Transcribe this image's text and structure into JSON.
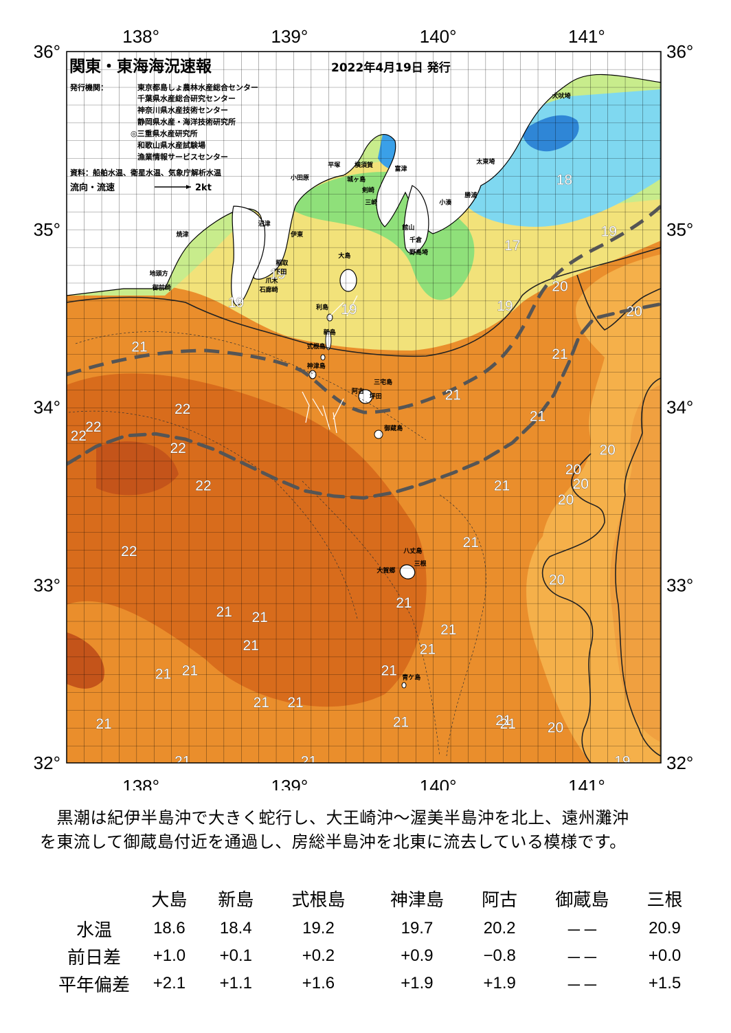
{
  "header": {
    "title": "関東・東海海況速報",
    "date": "2022年4月19日 発行",
    "issuer_label": "発行機関：",
    "issuers": [
      "東京都島しょ農林水産総合センター",
      "千葉県水産総合研究センター",
      "神奈川県水産技術センター",
      "静岡県水産・海洋技術研究所",
      "◎三重県水産研究所",
      "和歌山県水産試験場",
      "漁業情報サービスセンター"
    ],
    "source": "資料：船舶水温、衛星水温、気象庁解析水温",
    "flow_label": "流向・流速",
    "flow_scale": "2kt"
  },
  "axes": {
    "lon_ticks": [
      {
        "value": 138,
        "label": "138°"
      },
      {
        "value": 139,
        "label": "139°"
      },
      {
        "value": 140,
        "label": "140°"
      },
      {
        "value": 141,
        "label": "141°"
      }
    ],
    "lat_ticks": [
      {
        "value": 36,
        "label": "36°"
      },
      {
        "value": 35,
        "label": "35°"
      },
      {
        "value": 34,
        "label": "34°"
      },
      {
        "value": 33,
        "label": "33°"
      },
      {
        "value": 32,
        "label": "32°"
      }
    ]
  },
  "place_names": [
    {
      "name": "犬吠埼",
      "lon": 140.83,
      "lat": 35.74
    },
    {
      "name": "太東埼",
      "lon": 140.32,
      "lat": 35.37
    },
    {
      "name": "勝浦",
      "lon": 140.22,
      "lat": 35.18
    },
    {
      "name": "小湊",
      "lon": 140.05,
      "lat": 35.14
    },
    {
      "name": "富津",
      "lon": 139.75,
      "lat": 35.33
    },
    {
      "name": "館山",
      "lon": 139.8,
      "lat": 35.0
    },
    {
      "name": "千倉",
      "lon": 139.85,
      "lat": 34.93
    },
    {
      "name": "野島埼",
      "lon": 139.87,
      "lat": 34.86
    },
    {
      "name": "平塚",
      "lon": 139.3,
      "lat": 35.35
    },
    {
      "name": "横須賀",
      "lon": 139.5,
      "lat": 35.35
    },
    {
      "name": "三崎",
      "lon": 139.55,
      "lat": 35.14
    },
    {
      "name": "剣崎",
      "lon": 139.53,
      "lat": 35.21
    },
    {
      "name": "城ヶ島",
      "lon": 139.45,
      "lat": 35.27
    },
    {
      "name": "小田原",
      "lon": 139.07,
      "lat": 35.28
    },
    {
      "name": "伊東",
      "lon": 139.05,
      "lat": 34.96
    },
    {
      "name": "稲取",
      "lon": 138.95,
      "lat": 34.8
    },
    {
      "name": "下田",
      "lon": 138.94,
      "lat": 34.75
    },
    {
      "name": "爪木",
      "lon": 138.88,
      "lat": 34.7
    },
    {
      "name": "石廊崎",
      "lon": 138.86,
      "lat": 34.65
    },
    {
      "name": "沼津",
      "lon": 138.83,
      "lat": 35.02
    },
    {
      "name": "焼津",
      "lon": 138.28,
      "lat": 34.96
    },
    {
      "name": "御前崎",
      "lon": 138.14,
      "lat": 34.66
    },
    {
      "name": "地頭方",
      "lon": 138.12,
      "lat": 34.74
    },
    {
      "name": "大島",
      "lon": 139.37,
      "lat": 34.84
    },
    {
      "name": "利島",
      "lon": 139.22,
      "lat": 34.55
    },
    {
      "name": "新島",
      "lon": 139.27,
      "lat": 34.41
    },
    {
      "name": "式根島",
      "lon": 139.18,
      "lat": 34.33
    },
    {
      "name": "神津島",
      "lon": 139.18,
      "lat": 34.22
    },
    {
      "name": "阿古",
      "lon": 139.46,
      "lat": 34.08
    },
    {
      "name": "三宅島",
      "lon": 139.63,
      "lat": 34.13
    },
    {
      "name": "坪田",
      "lon": 139.58,
      "lat": 34.05
    },
    {
      "name": "御蔵島",
      "lon": 139.7,
      "lat": 33.87
    },
    {
      "name": "八丈島",
      "lon": 139.83,
      "lat": 33.18
    },
    {
      "name": "三根",
      "lon": 139.88,
      "lat": 33.11
    },
    {
      "name": "大賀郷",
      "lon": 139.65,
      "lat": 33.07
    },
    {
      "name": "青ケ島",
      "lon": 139.82,
      "lat": 32.47
    }
  ],
  "isotherm_labels": [
    {
      "value": "18",
      "lon": 140.85,
      "lat": 35.28
    },
    {
      "value": "19",
      "lon": 141.15,
      "lat": 34.99
    },
    {
      "value": "17",
      "lon": 140.5,
      "lat": 34.91
    },
    {
      "value": "19",
      "lon": 138.92,
      "lat": 34.75
    },
    {
      "value": "19",
      "lon": 138.64,
      "lat": 34.59
    },
    {
      "value": "19",
      "lon": 139.4,
      "lat": 34.55
    },
    {
      "value": "19",
      "lon": 140.45,
      "lat": 34.57
    },
    {
      "value": "20",
      "lon": 140.82,
      "lat": 34.68
    },
    {
      "value": "20",
      "lon": 141.32,
      "lat": 34.54
    },
    {
      "value": "21",
      "lon": 137.99,
      "lat": 34.34
    },
    {
      "value": "21",
      "lon": 140.82,
      "lat": 34.3
    },
    {
      "value": "21",
      "lon": 140.1,
      "lat": 34.07
    },
    {
      "value": "21",
      "lon": 140.67,
      "lat": 33.95
    },
    {
      "value": "22",
      "lon": 138.28,
      "lat": 33.99
    },
    {
      "value": "22",
      "lon": 137.68,
      "lat": 33.89
    },
    {
      "value": "22",
      "lon": 137.58,
      "lat": 33.84
    },
    {
      "value": "22",
      "lon": 138.25,
      "lat": 33.77
    },
    {
      "value": "22",
      "lon": 138.42,
      "lat": 33.56
    },
    {
      "value": "22",
      "lon": 137.92,
      "lat": 33.19
    },
    {
      "value": "20",
      "lon": 141.14,
      "lat": 33.76
    },
    {
      "value": "20",
      "lon": 140.91,
      "lat": 33.65
    },
    {
      "value": "20",
      "lon": 140.96,
      "lat": 33.57
    },
    {
      "value": "20",
      "lon": 140.86,
      "lat": 33.48
    },
    {
      "value": "21",
      "lon": 140.43,
      "lat": 33.56
    },
    {
      "value": "21",
      "lon": 140.22,
      "lat": 33.24
    },
    {
      "value": "20",
      "lon": 140.8,
      "lat": 33.03
    },
    {
      "value": "21",
      "lon": 139.77,
      "lat": 32.9
    },
    {
      "value": "21",
      "lon": 140.07,
      "lat": 32.75
    },
    {
      "value": "21",
      "lon": 139.93,
      "lat": 32.64
    },
    {
      "value": "21",
      "lon": 138.56,
      "lat": 32.85
    },
    {
      "value": "21",
      "lon": 138.8,
      "lat": 32.82
    },
    {
      "value": "21",
      "lon": 138.74,
      "lat": 32.66
    },
    {
      "value": "21",
      "lon": 138.15,
      "lat": 32.5
    },
    {
      "value": "21",
      "lon": 138.33,
      "lat": 32.52
    },
    {
      "value": "21",
      "lon": 139.67,
      "lat": 32.52
    },
    {
      "value": "21",
      "lon": 138.81,
      "lat": 32.34
    },
    {
      "value": "21",
      "lon": 139.04,
      "lat": 32.34
    },
    {
      "value": "21",
      "lon": 139.75,
      "lat": 32.23
    },
    {
      "value": "21",
      "lon": 140.44,
      "lat": 32.24
    },
    {
      "value": "21",
      "lon": 140.47,
      "lat": 32.22
    },
    {
      "value": "20",
      "lon": 140.79,
      "lat": 32.2
    },
    {
      "value": "21",
      "lon": 137.75,
      "lat": 32.22
    },
    {
      "value": "21",
      "lon": 138.28,
      "lat": 32.01
    },
    {
      "value": "21",
      "lon": 139.13,
      "lat": 32.01
    },
    {
      "value": "19",
      "lon": 141.24,
      "lat": 32.01
    }
  ],
  "kuroshio_path": {
    "description_unused": "",
    "points_lonlat": [
      [
        137.5,
        33.68
      ],
      [
        137.7,
        33.78
      ],
      [
        137.9,
        33.84
      ],
      [
        138.1,
        33.85
      ],
      [
        138.3,
        33.82
      ],
      [
        138.5,
        33.76
      ],
      [
        138.7,
        33.68
      ],
      [
        138.9,
        33.6
      ],
      [
        139.1,
        33.53
      ],
      [
        139.3,
        33.5
      ],
      [
        139.5,
        33.49
      ],
      [
        139.7,
        33.52
      ],
      [
        139.9,
        33.57
      ],
      [
        140.1,
        33.63
      ],
      [
        140.3,
        33.7
      ],
      [
        140.5,
        33.8
      ],
      [
        140.65,
        33.92
      ],
      [
        140.78,
        34.07
      ],
      [
        140.88,
        34.25
      ],
      [
        140.95,
        34.4
      ],
      [
        141.05,
        34.5
      ],
      [
        141.25,
        34.54
      ],
      [
        141.5,
        34.58
      ]
    ]
  },
  "text": {
    "description_lines": [
      "　黒潮は紀伊半島沖で大きく蛇行し、大王崎沖～渥美半島沖を北上、遠州灘沖",
      "を東流して御蔵島付近を通過し、房総半島沖を北東に流去している模様です。"
    ]
  },
  "table": {
    "columns": [
      "大島",
      "新島",
      "式根島",
      "神津島",
      "阿古",
      "御蔵島",
      "三根"
    ],
    "rows": [
      {
        "label": "水温",
        "values": [
          "18.6",
          "18.4",
          "19.2",
          "19.7",
          "20.2",
          "－－",
          "20.9"
        ]
      },
      {
        "label": "前日差",
        "values": [
          "+1.0",
          "+0.1",
          "+0.2",
          "+0.9",
          "−0.8",
          "－－",
          "+0.0"
        ]
      },
      {
        "label": "平年偏差",
        "values": [
          "+2.1",
          "+1.1",
          "+1.6",
          "+1.9",
          "+1.9",
          "－－",
          "+1.5"
        ]
      }
    ]
  },
  "colors": {
    "land": "#ffffff",
    "water_cold_blue": "#3aa0e8",
    "water_cyan": "#7fd8f0",
    "water_green": "#8fe07a",
    "water_lightgreen": "#c8ec8c",
    "water_yellow": "#f2e27a",
    "water_lightorange": "#f5b04a",
    "water_orange": "#ea8e2c",
    "water_darkorange": "#d86c1c",
    "water_red": "#c4541a",
    "kuroshio_line": "#555555"
  }
}
